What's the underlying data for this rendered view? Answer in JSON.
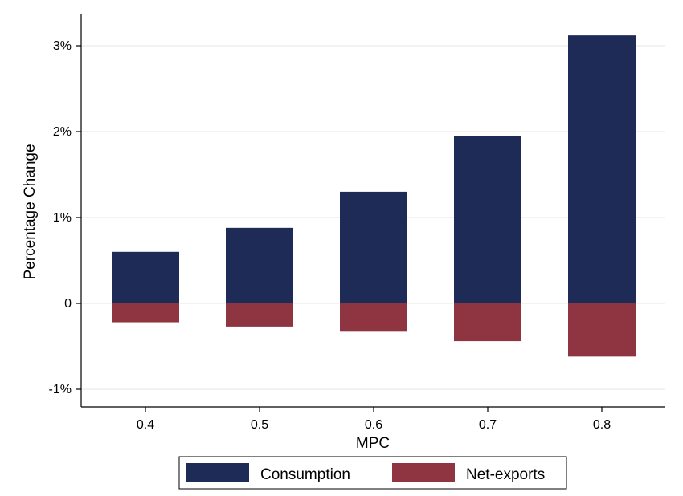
{
  "chart_data": {
    "type": "bar",
    "stacked": true,
    "categories": [
      "0.4",
      "0.5",
      "0.6",
      "0.7",
      "0.8"
    ],
    "series": [
      {
        "name": "Consumption",
        "color": "#1f2b57",
        "values": [
          0.6,
          0.88,
          1.3,
          1.95,
          3.12
        ]
      },
      {
        "name": "Net-exports",
        "color": "#8f3541",
        "values": [
          -0.22,
          -0.27,
          -0.33,
          -0.44,
          -0.62
        ]
      }
    ],
    "xlabel": "MPC",
    "ylabel": "Percentage Change",
    "ylim": [
      -1.2,
      3.5
    ],
    "yticks": [
      -1,
      0,
      1,
      2,
      3
    ],
    "ytick_labels": [
      "-1%",
      "0",
      "1%",
      "2%",
      "3%"
    ],
    "grid": true,
    "legend_position": "bottom"
  }
}
